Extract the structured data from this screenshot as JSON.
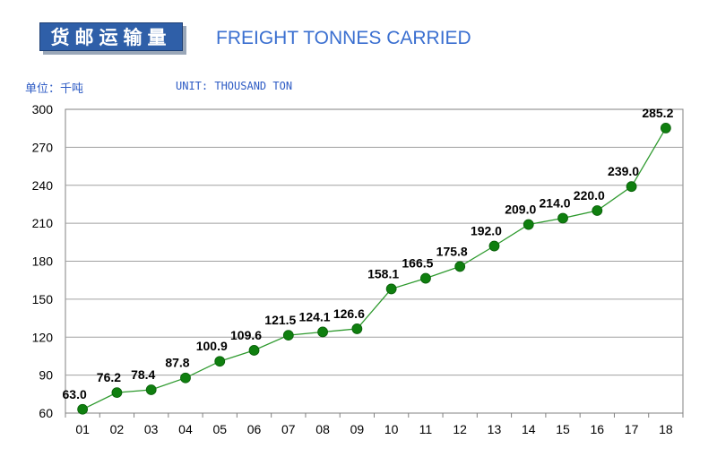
{
  "header": {
    "title_cn": "货邮运输量",
    "title_en": "FREIGHT TONNES CARRIED",
    "unit_cn": "单位：千吨",
    "unit_en": "UNIT: THOUSAND TON"
  },
  "chart_data": {
    "type": "line",
    "categories": [
      "01",
      "02",
      "03",
      "04",
      "05",
      "06",
      "07",
      "08",
      "09",
      "10",
      "11",
      "12",
      "13",
      "14",
      "15",
      "16",
      "17",
      "18"
    ],
    "series": [
      {
        "values": [
          63.0,
          76.2,
          78.4,
          87.8,
          100.9,
          109.6,
          121.5,
          124.1,
          126.6,
          158.1,
          166.5,
          175.8,
          192.0,
          209.0,
          214.0,
          220.0,
          239.0,
          285.2
        ]
      }
    ],
    "value_labels": [
      "63.0",
      "76.2",
      "78.4",
      "87.8",
      "100.9",
      "109.6",
      "121.5",
      "124.1",
      "126.6",
      "158.1",
      "166.5",
      "175.8",
      "192.0",
      "209.0",
      "214.0",
      "220.0",
      "239.0",
      "285.2"
    ],
    "ylim": [
      60,
      300
    ],
    "yticks": [
      "60",
      "90",
      "120",
      "150",
      "180",
      "210",
      "240",
      "270",
      "300"
    ],
    "grid": true,
    "line_color": "#2e9a2e",
    "marker_color": "#0f7f0f",
    "grid_color": "#a0a0a0"
  }
}
